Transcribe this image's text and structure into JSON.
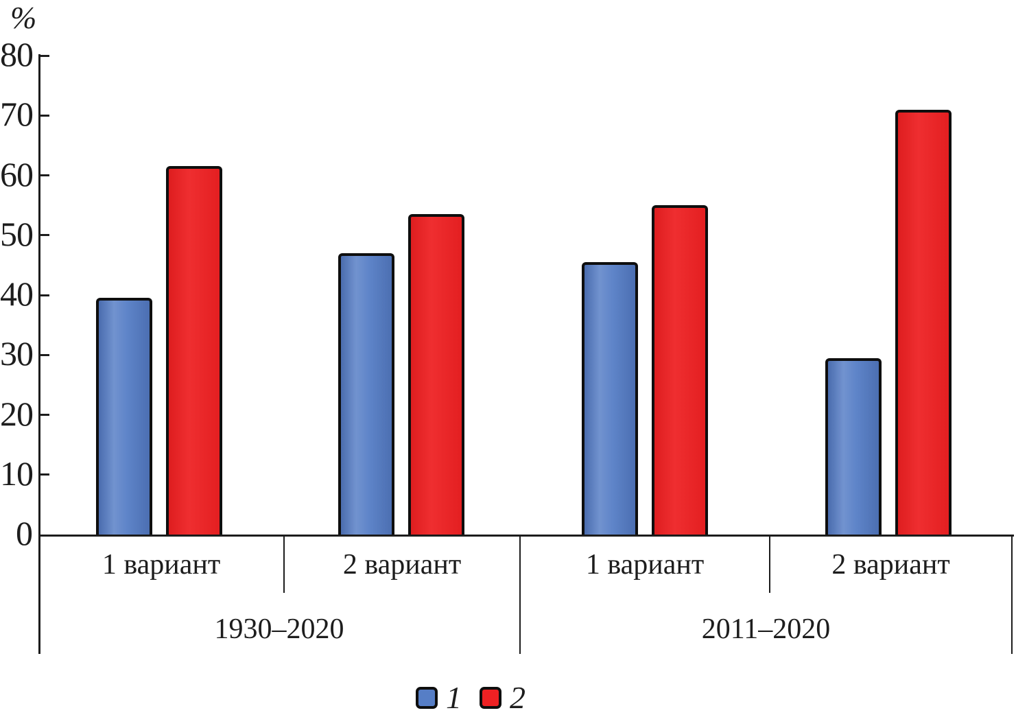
{
  "chart_data": {
    "type": "bar",
    "title": "",
    "ylabel": "%",
    "xlabel": "",
    "ylim": [
      0,
      80
    ],
    "yticks": [
      0,
      10,
      20,
      30,
      40,
      50,
      60,
      70,
      80
    ],
    "grid": false,
    "legend_position": "bottom",
    "axis_color": "#1c1c1c",
    "groups": [
      {
        "period": "1930–2020",
        "variants": [
          "1 вариант",
          "2 вариант"
        ]
      },
      {
        "period": "2011–2020",
        "variants": [
          "1 вариант",
          "2 вариант"
        ]
      }
    ],
    "categories": [
      "1 вариант",
      "2 вариант",
      "1 вариант",
      "2 вариант"
    ],
    "series": [
      {
        "name": "1",
        "color": "#567ec6",
        "values": [
          39.5,
          47,
          45.5,
          29.5
        ]
      },
      {
        "name": "2",
        "color": "#ee2123",
        "values": [
          61.5,
          53.5,
          55,
          71
        ]
      }
    ]
  }
}
